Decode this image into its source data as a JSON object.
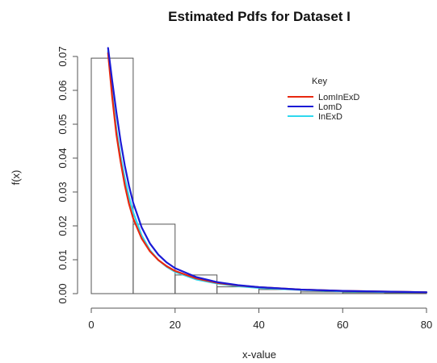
{
  "chart_data": {
    "type": "line",
    "title": "Estimated Pdfs for Dataset I",
    "xlabel": "x-value",
    "ylabel": "f(x)",
    "xlim": [
      0,
      80
    ],
    "ylim": [
      0,
      0.07
    ],
    "x_ticks": [
      "0",
      "20",
      "40",
      "60",
      "80"
    ],
    "y_ticks": [
      "0.00",
      "0.01",
      "0.02",
      "0.03",
      "0.04",
      "0.05",
      "0.06",
      "0.07"
    ],
    "histogram": {
      "bin_edges": [
        0,
        10,
        20,
        30,
        40,
        50,
        60,
        70,
        80
      ],
      "densities": [
        0.0695,
        0.0205,
        0.0055,
        0.002,
        0.0012,
        0.0005,
        0.0003,
        0.0002
      ]
    },
    "legend": {
      "title": "Key",
      "position": "top-right"
    },
    "series": [
      {
        "name": "LomInExD",
        "color": "#e8280f",
        "x": [
          4,
          5,
          6,
          7,
          8,
          9,
          10,
          12,
          14,
          16,
          18,
          20,
          25,
          30,
          35,
          40,
          50,
          60,
          70,
          80
        ],
        "y": [
          0.071,
          0.058,
          0.047,
          0.039,
          0.032,
          0.0265,
          0.0222,
          0.0163,
          0.0125,
          0.0099,
          0.0081,
          0.0067,
          0.0045,
          0.0032,
          0.0024,
          0.0019,
          0.0012,
          0.0008,
          0.0006,
          0.0004
        ]
      },
      {
        "name": "LomD",
        "color": "#1a1ad6",
        "x": [
          4,
          5,
          6,
          7,
          8,
          9,
          10,
          12,
          14,
          16,
          18,
          20,
          25,
          30,
          35,
          40,
          50,
          60,
          70,
          80
        ],
        "y": [
          0.0725,
          0.0628,
          0.0535,
          0.045,
          0.0378,
          0.0318,
          0.0268,
          0.0196,
          0.0148,
          0.0115,
          0.0092,
          0.0075,
          0.0049,
          0.0034,
          0.0025,
          0.0019,
          0.0012,
          0.0008,
          0.0006,
          0.0004
        ]
      },
      {
        "name": "InExD",
        "color": "#2ed8ee",
        "x": [
          4,
          5,
          6,
          7,
          8,
          9,
          10,
          12,
          14,
          16,
          18,
          20,
          25,
          30,
          35,
          40,
          50,
          60,
          70,
          80
        ],
        "y": [
          0.0715,
          0.059,
          0.0485,
          0.0405,
          0.034,
          0.0285,
          0.024,
          0.0172,
          0.0128,
          0.0099,
          0.0079,
          0.0064,
          0.0042,
          0.003,
          0.0022,
          0.0017,
          0.0011,
          0.0007,
          0.0005,
          0.0004
        ]
      }
    ]
  }
}
